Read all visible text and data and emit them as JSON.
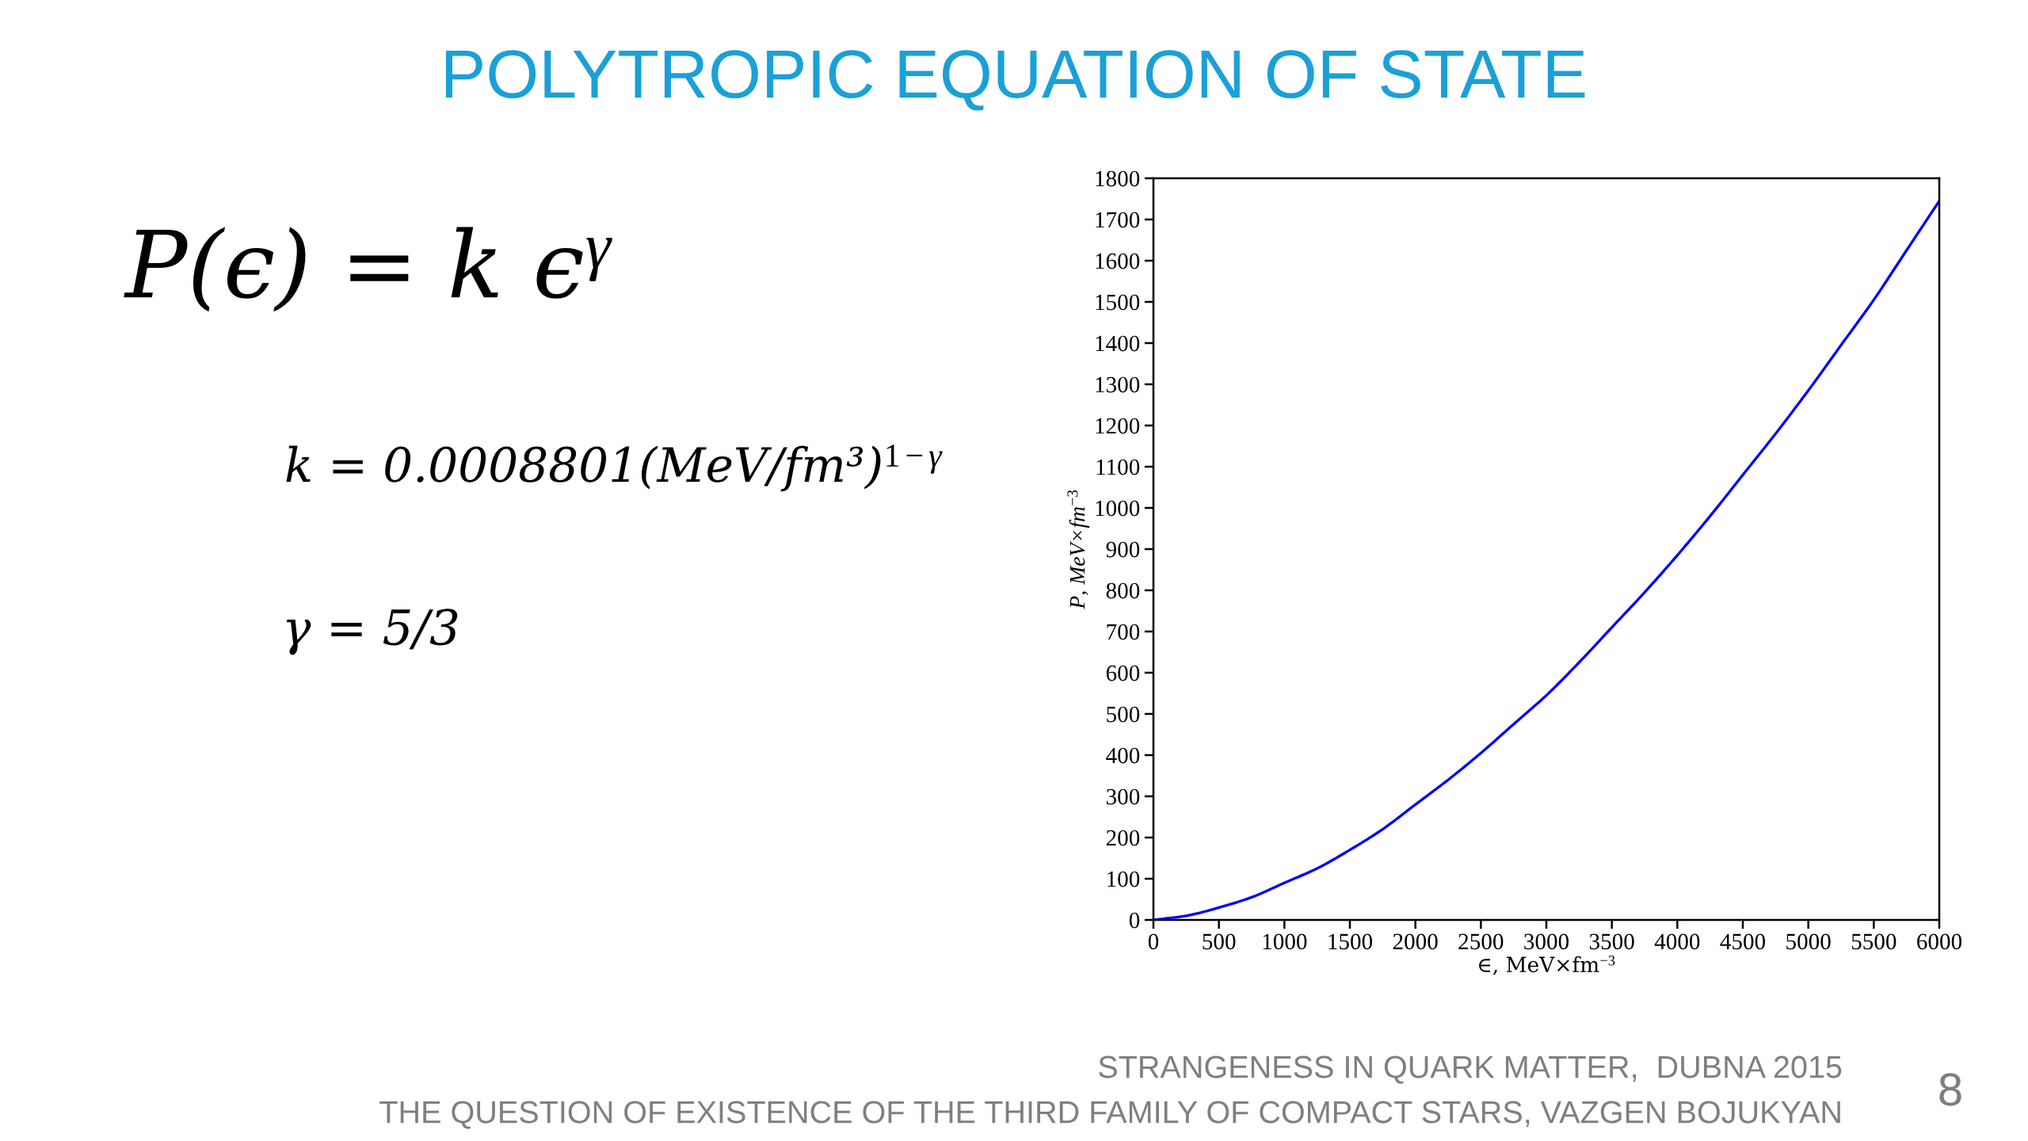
{
  "chart_data": {
    "type": "line",
    "title": "POLYTROPIC EQUATION OF STATE",
    "xlabel": "∈, MeV×fm$^{−3}$",
    "ylabel": "P, MeV×fm$^{−3}$",
    "x": [
      0,
      250,
      500,
      750,
      1000,
      1250,
      1500,
      1750,
      2000,
      2250,
      2500,
      2750,
      3000,
      3250,
      3500,
      3750,
      4000,
      4250,
      4500,
      4750,
      5000,
      5250,
      5500,
      5750,
      6000
    ],
    "series": [
      {
        "color": "#0000ff",
        "values": [
          0,
          10,
          30,
          55,
          90,
          125,
          170,
          220,
          280,
          340,
          405,
          475,
          545,
          625,
          710,
          795,
          885,
          980,
          1080,
          1180,
          1285,
          1395,
          1505,
          1625,
          1745
        ]
      }
    ],
    "xlim": [
      0,
      6000
    ],
    "ylim": [
      0,
      1800
    ],
    "xticks": [
      0,
      500,
      1000,
      1500,
      2000,
      2500,
      3000,
      3500,
      4000,
      4500,
      5000,
      5500,
      6000
    ],
    "yticks": [
      0,
      100,
      200,
      300,
      400,
      500,
      600,
      700,
      800,
      900,
      1000,
      1100,
      1200,
      1300,
      1400,
      1500,
      1600,
      1700,
      1800
    ],
    "annotations": [
      "P(ϵ) = k ϵ$^{γ}$",
      "k = 0.0008801(MeV/fm³)$^{1−γ}$",
      "γ = 5/3",
      "STRANGENESS IN QUARK MATTER,  DUBNA 2015",
      "THE QUESTION OF EXISTENCE OF THE THIRD FAMILY OF COMPACT STARS, VAZGEN BOJUKYAN",
      "8"
    ]
  }
}
